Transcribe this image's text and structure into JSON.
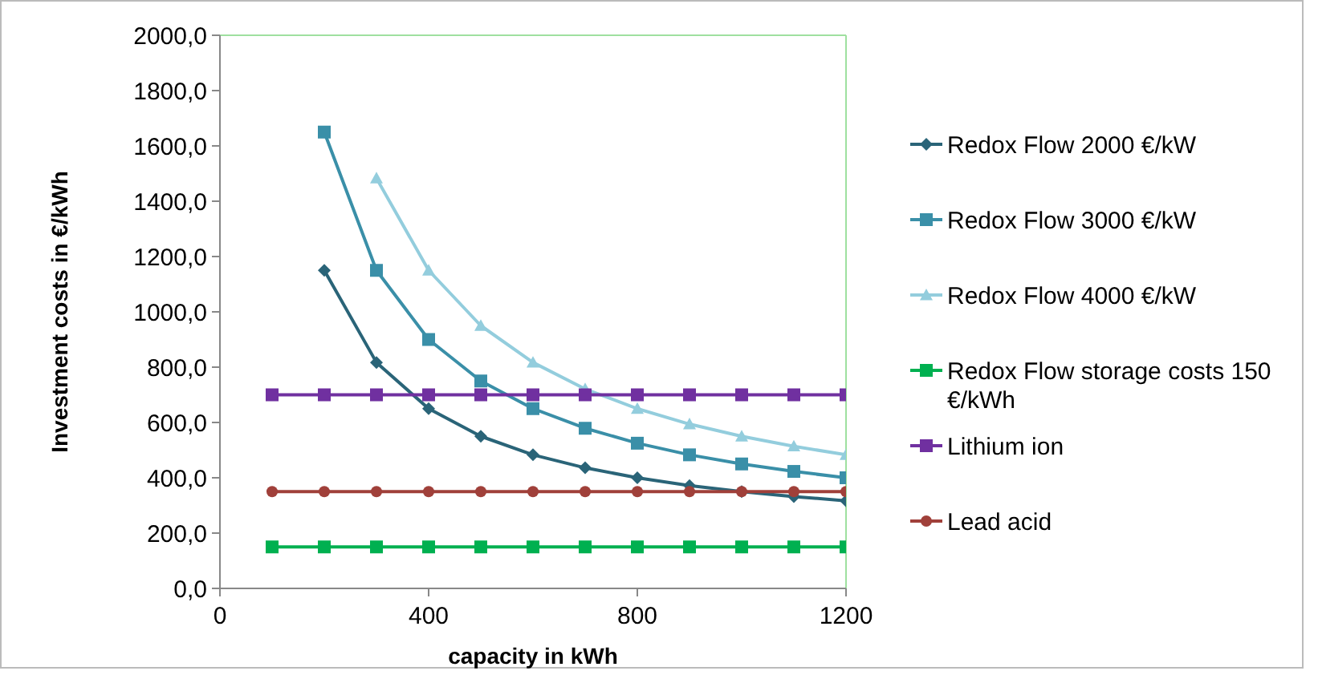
{
  "chart_data": {
    "type": "line",
    "xlabel": "capacity in kWh",
    "ylabel": "Investment costs in €/kWh",
    "x": [
      100,
      200,
      300,
      400,
      500,
      600,
      700,
      800,
      900,
      1000,
      1100,
      1200
    ],
    "xlim": [
      0,
      1200
    ],
    "xticks": [
      0,
      400,
      800,
      1200
    ],
    "ylim": [
      0,
      2000
    ],
    "yticks": [
      {
        "value": 0,
        "label": "0,0"
      },
      {
        "value": 200,
        "label": "200,0"
      },
      {
        "value": 400,
        "label": "400,0"
      },
      {
        "value": 600,
        "label": "600,0"
      },
      {
        "value": 800,
        "label": "800,0"
      },
      {
        "value": 1000,
        "label": "1000,0"
      },
      {
        "value": 1200,
        "label": "1200,0"
      },
      {
        "value": 1400,
        "label": "1400,0"
      },
      {
        "value": 1600,
        "label": "1600,0"
      },
      {
        "value": 1800,
        "label": "1800,0"
      },
      {
        "value": 2000,
        "label": "2000,0"
      }
    ],
    "grid": false,
    "legend": "right",
    "series": [
      {
        "name": "Redox Flow 2000 €/kW",
        "color": "#2a6478",
        "marker": "diamond",
        "values": [
          null,
          1150,
          817,
          650,
          550,
          483,
          436,
          400,
          372,
          350,
          332,
          317
        ]
      },
      {
        "name": "Redox Flow 3000 €/kW",
        "color": "#3a8fa8",
        "marker": "square",
        "values": [
          null,
          1650,
          1150,
          900,
          750,
          650,
          579,
          525,
          483,
          450,
          423,
          400
        ]
      },
      {
        "name": "Redox Flow 4000 €/kW",
        "color": "#93cddd",
        "marker": "triangle",
        "values": [
          null,
          null,
          1483,
          1150,
          950,
          817,
          721,
          650,
          594,
          550,
          514,
          483
        ]
      },
      {
        "name": "Redox Flow storage costs 150 €/kWh",
        "color": "#00b050",
        "marker": "square",
        "values": [
          150,
          150,
          150,
          150,
          150,
          150,
          150,
          150,
          150,
          150,
          150,
          150
        ]
      },
      {
        "name": "Lithium ion",
        "color": "#7030a0",
        "marker": "square",
        "values": [
          700,
          700,
          700,
          700,
          700,
          700,
          700,
          700,
          700,
          700,
          700,
          700
        ]
      },
      {
        "name": "Lead acid",
        "color": "#a0403a",
        "marker": "circle",
        "values": [
          350,
          350,
          350,
          350,
          350,
          350,
          350,
          350,
          350,
          350,
          350,
          350
        ]
      }
    ]
  }
}
